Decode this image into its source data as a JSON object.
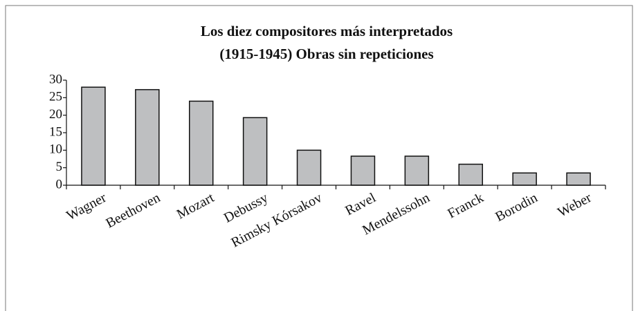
{
  "chart_data": {
    "type": "bar",
    "title": [
      "Los diez compositores más interpretados",
      "(1915-1945) Obras sin repeticiones"
    ],
    "categories": [
      "Wagner",
      "Beethoven",
      "Mozart",
      "Debussy",
      "Rimsky Kórsakov",
      "Ravel",
      "Mendelssohn",
      "Franck",
      "Borodin",
      "Weber"
    ],
    "values": [
      28,
      27.3,
      24,
      19.3,
      10,
      8.3,
      8.3,
      6,
      3.5,
      3.5
    ],
    "color": "#bebfc1",
    "ylim": [
      0,
      30
    ],
    "yticks": [
      0,
      5,
      10,
      15,
      20,
      25,
      30
    ],
    "grid": false
  }
}
